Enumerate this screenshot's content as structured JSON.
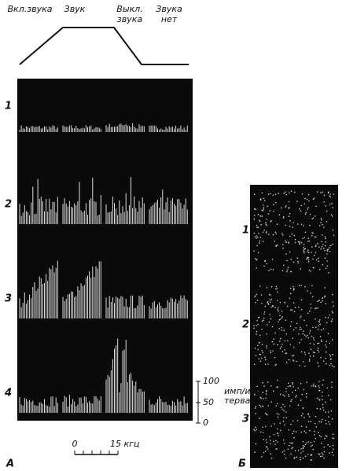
{
  "header": {
    "envelope_labels": [
      [
        "Вкл.звука"
      ],
      [
        "Звук"
      ],
      [
        "Выкл.",
        "звука"
      ],
      [
        "Звука",
        "нет"
      ]
    ]
  },
  "panel_a": {
    "rows": [
      "1",
      "2",
      "3",
      "4"
    ],
    "label": "А",
    "scale": {
      "ticks": [
        "100",
        "50",
        "0"
      ],
      "unit": [
        "имп/ин-",
        "тервал"
      ]
    },
    "freq_scale": {
      "start": "0",
      "end": "15 кгц"
    }
  },
  "panel_b": {
    "rows": [
      "1",
      "2",
      "3"
    ],
    "label": "Б"
  }
}
